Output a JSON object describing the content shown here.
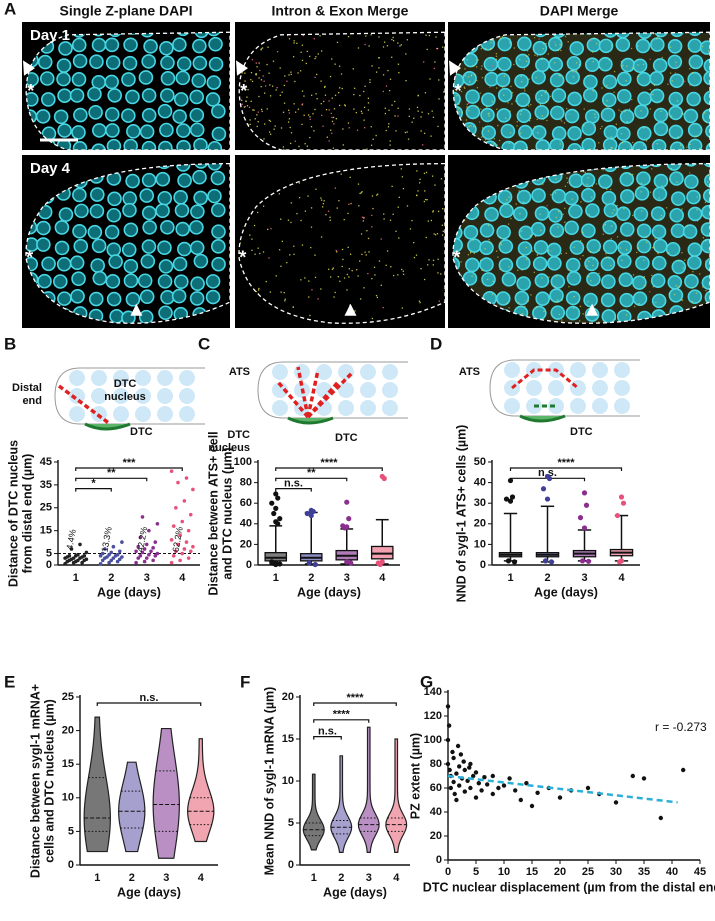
{
  "panel_labels": [
    "A",
    "B",
    "C",
    "D",
    "E",
    "F",
    "G"
  ],
  "image_panels": {
    "column_headers": [
      "Single Z-plane DAPI",
      "Intron & Exon Merge",
      "DAPI Merge"
    ],
    "rows": [
      "Day 1",
      "Day 4"
    ],
    "marker": "*"
  },
  "schematics": [
    {
      "texts": [
        [
          "Distal",
          "end"
        ],
        [
          "DTC",
          "nucleus"
        ],
        [
          "DTC"
        ]
      ]
    },
    {
      "texts": [
        [
          "ATS"
        ],
        [
          "DTC",
          "nucleus"
        ],
        [
          "DTC"
        ]
      ]
    },
    {
      "texts": [
        [
          "ATS"
        ],
        [
          "DTC"
        ]
      ]
    }
  ],
  "chart_data": [
    {
      "type": "strip",
      "categories": [
        "1",
        "2",
        "3",
        "4"
      ],
      "xlabel": "Age (days)",
      "ylabel": [
        "Distance of DTC nucleus",
        "from distal end (µm)"
      ],
      "ylim": [
        0,
        45
      ],
      "yticks": [
        0,
        5,
        15,
        25,
        35,
        45
      ],
      "threshold": 5,
      "colors": [
        "#222222",
        "#4b4fa0",
        "#8b2f8f",
        "#e8527a"
      ],
      "values": [
        [
          0.5,
          1,
          1,
          1.5,
          1.5,
          2,
          2,
          2,
          2.5,
          2.5,
          3,
          3,
          3,
          3.5,
          3.5,
          4,
          4,
          4,
          4.5,
          5.5,
          7,
          9
        ],
        [
          0.5,
          1,
          1.5,
          2,
          2,
          2.5,
          3,
          3,
          3.5,
          3.5,
          4,
          4,
          4.5,
          4.5,
          5,
          5.5,
          6,
          7,
          8,
          10
        ],
        [
          1,
          1.5,
          2,
          3,
          3,
          4,
          4,
          4.5,
          5,
          5.5,
          6,
          6,
          7,
          7.5,
          8,
          9,
          10,
          12,
          15,
          18,
          21
        ],
        [
          1,
          2,
          3,
          4,
          5,
          6,
          6,
          7,
          8,
          9,
          10,
          11,
          13,
          15,
          17,
          19,
          22,
          25,
          28,
          33,
          36,
          38,
          41
        ]
      ],
      "percentages": [
        4.4,
        13.3,
        42.2,
        62.2
      ],
      "percentage_labels": [
        "4.4%",
        "13.3%",
        "42.2%",
        "62.2%"
      ],
      "brackets": [
        {
          "between": [
            "1",
            "2"
          ],
          "label": "*"
        },
        {
          "between": [
            "1",
            "3"
          ],
          "label": "**"
        },
        {
          "between": [
            "1",
            "4"
          ],
          "label": "***"
        }
      ]
    },
    {
      "type": "box",
      "categories": [
        "1",
        "2",
        "3",
        "4"
      ],
      "xlabel": "Age (days)",
      "ylabel": [
        "Distance between ATS+ cell",
        "and DTC nucleus (µm)"
      ],
      "ylim": [
        0,
        100
      ],
      "yticks": [
        0,
        20,
        40,
        60,
        80,
        100
      ],
      "colors": [
        "#7f7f7f",
        "#8f8fc8",
        "#b07ab8",
        "#f2a0b0"
      ],
      "point_colors": [
        "#111111",
        "#3f3f99",
        "#8b2f8f",
        "#e8527a"
      ],
      "boxes": [
        {
          "low": 1,
          "q1": 4,
          "median": 7,
          "q3": 12,
          "high": 38,
          "outliers": [
            69,
            65,
            60,
            55,
            50,
            45,
            42,
            40,
            3,
            2,
            1.5,
            1,
            0.5
          ]
        },
        {
          "low": 1,
          "q1": 4,
          "median": 7,
          "q3": 11,
          "high": 51,
          "outliers": [
            53,
            52,
            50,
            48,
            2,
            0.5
          ]
        },
        {
          "low": 1,
          "q1": 5,
          "median": 9,
          "q3": 14,
          "high": 35,
          "outliers": [
            61,
            45,
            38,
            37,
            36,
            2,
            3
          ]
        },
        {
          "low": 1,
          "q1": 6,
          "median": 11,
          "q3": 18,
          "high": 44,
          "outliers": [
            86,
            84,
            2,
            3,
            0.5
          ]
        }
      ],
      "brackets": [
        {
          "between": [
            "1",
            "2"
          ],
          "label": "n.s."
        },
        {
          "between": [
            "1",
            "3"
          ],
          "label": "**"
        },
        {
          "between": [
            "1",
            "4"
          ],
          "label": "****"
        }
      ]
    },
    {
      "type": "box",
      "categories": [
        "1",
        "2",
        "3",
        "4"
      ],
      "xlabel": "Age (days)",
      "ylabel": [
        "NND of sygl-1 ATS+ cells (µm)"
      ],
      "ylim": [
        0,
        50
      ],
      "yticks": [
        0,
        10,
        20,
        30,
        40,
        50
      ],
      "colors": [
        "#7f7f7f",
        "#8f8fc8",
        "#b07ab8",
        "#f2a0b0"
      ],
      "point_colors": [
        "#111111",
        "#3f3f99",
        "#8b2f8f",
        "#e8527a"
      ],
      "boxes": [
        {
          "low": 2,
          "q1": 4,
          "median": 5,
          "q3": 6,
          "high": 25,
          "outliers": [
            41,
            33,
            32,
            31,
            2,
            1.5
          ]
        },
        {
          "low": 1.5,
          "q1": 4,
          "median": 5,
          "q3": 6,
          "high": 28.5,
          "outliers": [
            43,
            42,
            37,
            32,
            2,
            1.5
          ]
        },
        {
          "low": 2,
          "q1": 4,
          "median": 5.5,
          "q3": 7,
          "high": 17,
          "outliers": [
            35,
            29,
            23,
            18,
            2,
            1.8
          ]
        },
        {
          "low": 2,
          "q1": 4.5,
          "median": 6,
          "q3": 7.5,
          "high": 24,
          "outliers": [
            33,
            30,
            24,
            2,
            1.5
          ]
        }
      ],
      "brackets": [
        {
          "between": [
            "1",
            "3"
          ],
          "label": "n.s."
        },
        {
          "between": [
            "1",
            "4"
          ],
          "label": "****"
        }
      ]
    },
    {
      "type": "violin",
      "categories": [
        "1",
        "2",
        "3",
        "4"
      ],
      "xlabel": "Age (days)",
      "ylabel": [
        "Distance between sygl-1 mRNA+",
        "cells and DTC nucleus (µm)"
      ],
      "ylim": [
        0,
        25
      ],
      "yticks": [
        0,
        5,
        10,
        15,
        20,
        25
      ],
      "colors": [
        "#777777",
        "#a6a0cf",
        "#b98fc4",
        "#f0a5b0"
      ],
      "violins": [
        {
          "min": 2,
          "q1": 5,
          "median": 7,
          "q3": 13,
          "max": 22
        },
        {
          "min": 2,
          "q1": 5.5,
          "median": 8,
          "q3": 11,
          "max": 15.3
        },
        {
          "min": 1,
          "q1": 5,
          "median": 9,
          "q3": 14,
          "max": 20.3
        },
        {
          "min": 3.5,
          "q1": 6,
          "median": 8,
          "q3": 10,
          "max": 18.8
        }
      ],
      "brackets": [
        {
          "between": [
            "1",
            "4"
          ],
          "label": "n.s."
        }
      ]
    },
    {
      "type": "violin",
      "categories": [
        "1",
        "2",
        "3",
        "4"
      ],
      "xlabel": "Age (days)",
      "ylabel": [
        "Mean NND of sygl-1 mRNA (µm)"
      ],
      "ylim": [
        0,
        20
      ],
      "yticks": [
        0,
        5,
        10,
        15,
        20
      ],
      "colors": [
        "#777777",
        "#a6a0cf",
        "#b98fc4",
        "#f0a5b0"
      ],
      "violins": [
        {
          "min": 1.8,
          "q1": 3.5,
          "median": 4.2,
          "q3": 5,
          "max": 10.8
        },
        {
          "min": 1.5,
          "q1": 3.7,
          "median": 4.5,
          "q3": 5.3,
          "max": 13
        },
        {
          "min": 1.5,
          "q1": 4,
          "median": 4.8,
          "q3": 5.6,
          "max": 16.4
        },
        {
          "min": 1.5,
          "q1": 4,
          "median": 4.8,
          "q3": 5.6,
          "max": 15
        }
      ],
      "brackets": [
        {
          "between": [
            "1",
            "2"
          ],
          "label": "n.s."
        },
        {
          "between": [
            "1",
            "3"
          ],
          "label": "****"
        },
        {
          "between": [
            "1",
            "4"
          ],
          "label": "****"
        }
      ]
    },
    {
      "type": "scatter",
      "xlabel": "DTC nuclear displacement (µm from the distal end)",
      "ylabel": [
        "PZ extent (µm)"
      ],
      "xlim": [
        0,
        45
      ],
      "xticks": [
        0,
        5,
        10,
        15,
        20,
        25,
        30,
        35,
        40,
        45
      ],
      "ylim": [
        0,
        140
      ],
      "yticks": [
        0,
        20,
        40,
        60,
        80,
        100,
        120,
        140
      ],
      "color": "#111111",
      "trend_color": "#2ab0d8",
      "annotation": "r = -0.273",
      "trend": {
        "x": [
          0,
          41
        ],
        "y": [
          70,
          48
        ]
      },
      "x": [
        0,
        0,
        0,
        0.3,
        0.5,
        0.5,
        0.8,
        1,
        1,
        1.2,
        1.5,
        1.5,
        2,
        2,
        2.3,
        2.5,
        3,
        3,
        3.5,
        4,
        4,
        4.5,
        5,
        5,
        5.5,
        6,
        6.5,
        7,
        8,
        8,
        9,
        10,
        11,
        12,
        13,
        14,
        15,
        16,
        18,
        20,
        22,
        25,
        27,
        30,
        33,
        35,
        38,
        42,
        0.2,
        1.8,
        2.8,
        3.8
      ],
      "y": [
        128,
        100,
        80,
        75,
        70,
        60,
        90,
        85,
        65,
        55,
        72,
        50,
        78,
        62,
        88,
        68,
        75,
        57,
        66,
        80,
        60,
        70,
        73,
        52,
        64,
        58,
        69,
        63,
        70,
        55,
        60,
        62,
        68,
        58,
        50,
        64,
        45,
        56,
        60,
        52,
        58,
        60,
        55,
        48,
        70,
        68,
        35,
        75,
        112,
        95,
        82,
        77
      ]
    }
  ]
}
